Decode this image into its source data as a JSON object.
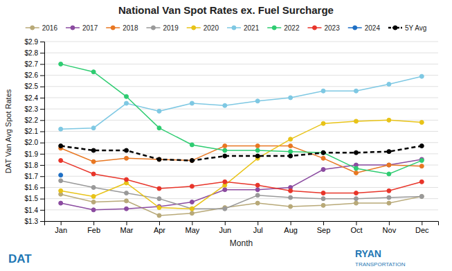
{
  "chart_data": {
    "type": "line",
    "title": "National Van Spot Rates ex. Fuel Surcharge",
    "x_label": "Month",
    "y_label": "DAT Van Avg Spot Rates",
    "categories": [
      "Jan",
      "Feb",
      "Mar",
      "Apr",
      "May",
      "Jun",
      "Jul",
      "Aug",
      "Sep",
      "Oct",
      "Nov",
      "Dec"
    ],
    "series": [
      {
        "name": "2016",
        "color": "#b8a978",
        "values": [
          1.54,
          1.47,
          1.48,
          1.35,
          1.37,
          1.42,
          1.46,
          1.43,
          1.44,
          1.46,
          1.46,
          1.52
        ]
      },
      {
        "name": "2017",
        "color": "#8B4BA0",
        "values": [
          1.46,
          1.4,
          1.41,
          1.43,
          1.47,
          1.58,
          1.58,
          1.6,
          1.76,
          1.8,
          1.8,
          1.85
        ]
      },
      {
        "name": "2018",
        "color": "#E87722",
        "values": [
          1.95,
          1.83,
          1.86,
          1.85,
          1.84,
          1.97,
          1.97,
          1.97,
          1.86,
          1.73,
          1.8,
          1.79
        ]
      },
      {
        "name": "2019",
        "color": "#999999",
        "values": [
          1.66,
          1.6,
          1.55,
          1.5,
          1.41,
          1.41,
          1.53,
          1.51,
          1.5,
          1.5,
          1.51,
          1.52
        ]
      },
      {
        "name": "2020",
        "color": "#E8C317",
        "values": [
          1.57,
          1.52,
          1.64,
          1.42,
          1.41,
          1.62,
          1.86,
          2.03,
          2.17,
          2.19,
          2.2,
          2.18
        ]
      },
      {
        "name": "2021",
        "color": "#7EC8E3",
        "values": [
          2.12,
          2.13,
          2.35,
          2.28,
          2.35,
          2.33,
          2.37,
          2.4,
          2.46,
          2.46,
          2.52,
          2.59
        ]
      },
      {
        "name": "2022",
        "color": "#2ECC71",
        "values": [
          2.7,
          2.63,
          2.41,
          2.13,
          1.98,
          1.93,
          1.93,
          1.92,
          1.91,
          1.77,
          1.72,
          1.84
        ]
      },
      {
        "name": "2023",
        "color": "#E8352A",
        "values": [
          1.84,
          1.72,
          1.67,
          1.59,
          1.61,
          1.65,
          1.62,
          1.57,
          1.55,
          1.55,
          1.57,
          1.65
        ]
      },
      {
        "name": "2024",
        "color": "#1E6FC5",
        "values": [
          1.71,
          null,
          null,
          null,
          null,
          null,
          null,
          null,
          null,
          null,
          null,
          null
        ]
      },
      {
        "name": "5Y Avg",
        "color": "#000000",
        "line_style": "dashed",
        "values": [
          1.97,
          1.93,
          1.93,
          1.85,
          1.84,
          1.88,
          1.88,
          1.88,
          1.91,
          1.91,
          1.92,
          1.97
        ]
      }
    ],
    "marker": "circle",
    "ylim": [
      1.3,
      2.9
    ],
    "yticks": [
      {
        "value": 1.3,
        "label": "$1.3"
      },
      {
        "value": 1.4,
        "label": "$1.4"
      },
      {
        "value": 1.5,
        "label": "$1.5"
      },
      {
        "value": 1.6,
        "label": "$1.6"
      },
      {
        "value": 1.7,
        "label": "$1.7"
      },
      {
        "value": 1.8,
        "label": "$1.8"
      },
      {
        "value": 1.9,
        "label": "$1.9"
      },
      {
        "value": 2.0,
        "label": "$2.0"
      },
      {
        "value": 2.1,
        "label": "$2.1"
      },
      {
        "value": 2.2,
        "label": "$2.2"
      },
      {
        "value": 2.3,
        "label": "$2.3"
      },
      {
        "value": 2.4,
        "label": "$2.4"
      },
      {
        "value": 2.5,
        "label": "$2.5"
      },
      {
        "value": 2.6,
        "label": "$2.6"
      },
      {
        "value": 2.7,
        "label": "$2.7"
      },
      {
        "value": 2.8,
        "label": "$2.8"
      },
      {
        "value": 2.9,
        "label": "$2.9"
      }
    ],
    "grid": "y",
    "legend": "top",
    "annotations": [
      "DAT",
      "RYAN",
      "TRANSPORTATION"
    ]
  }
}
